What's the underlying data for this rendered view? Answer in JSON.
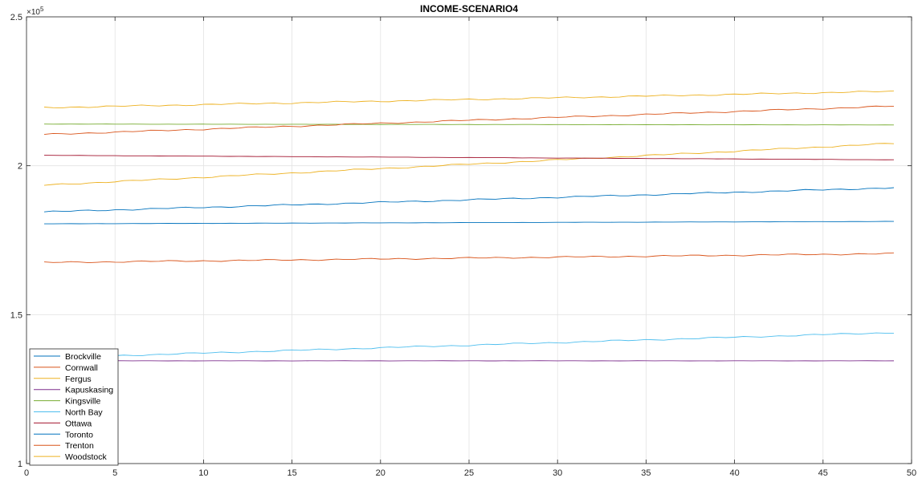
{
  "chart_data": {
    "type": "line",
    "title": "INCOME-SCENARIO4",
    "xlabel": "",
    "ylabel": "",
    "xlim": [
      0,
      50
    ],
    "ylim": [
      100000,
      250000
    ],
    "x_ticks": [
      0,
      5,
      10,
      15,
      20,
      25,
      30,
      35,
      40,
      45,
      50
    ],
    "x_tick_labels": [
      "0",
      "5",
      "10",
      "15",
      "20",
      "25",
      "30",
      "35",
      "40",
      "45",
      "50"
    ],
    "y_ticks": [
      100000,
      150000,
      200000,
      250000
    ],
    "y_tick_labels": [
      "1",
      "1.5",
      "2",
      "2.5"
    ],
    "y_exponent_label": "×10",
    "y_exponent_power": "5",
    "grid": true,
    "legend_position": "bottom-left",
    "x": [
      1,
      49
    ],
    "series": [
      {
        "name": "Brockville",
        "color": "#0072BD",
        "values": [
          184500,
          192600
        ]
      },
      {
        "name": "Cornwall",
        "color": "#D95319",
        "values": [
          167500,
          170500
        ]
      },
      {
        "name": "Fergus",
        "color": "#EDB120",
        "values": [
          193500,
          207500
        ]
      },
      {
        "name": "Kapuskasing",
        "color": "#7E2F8E",
        "values": [
          134500,
          134500
        ]
      },
      {
        "name": "Kingsville",
        "color": "#77AC30",
        "values": [
          214000,
          213700
        ]
      },
      {
        "name": "North Bay",
        "color": "#4DBEEE",
        "values": [
          135500,
          144000
        ]
      },
      {
        "name": "Ottawa",
        "color": "#A2142F",
        "values": [
          203500,
          202000
        ]
      },
      {
        "name": "Toronto",
        "color": "#0072BD",
        "values": [
          180500,
          181300
        ]
      },
      {
        "name": "Trenton",
        "color": "#D95319",
        "values": [
          210500,
          220000
        ]
      },
      {
        "name": "Woodstock",
        "color": "#EDB120",
        "values": [
          219500,
          225000
        ]
      }
    ]
  }
}
